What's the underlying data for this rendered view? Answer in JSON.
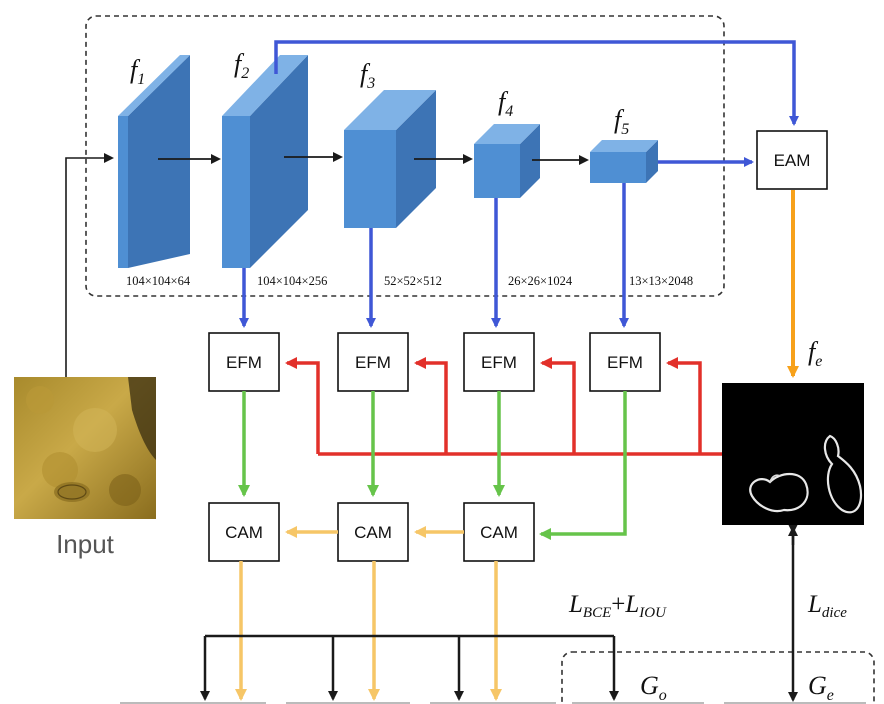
{
  "colors": {
    "blue_arrow": "#3f57d6",
    "red_arrow": "#e2302a",
    "green_arrow": "#66c44a",
    "yellow_arrow": "#f6c667",
    "orange_arrow": "#f7a11a",
    "black_arrow": "#1a1a1a",
    "cube_front": "#4f8fd3",
    "cube_side": "#3d74b5",
    "cube_top": "#7fb2e6"
  },
  "features": [
    {
      "symbol": "f",
      "sub": "1",
      "dims": "104×104×64"
    },
    {
      "symbol": "f",
      "sub": "2",
      "dims": "104×104×256"
    },
    {
      "symbol": "f",
      "sub": "3",
      "dims": "52×52×512"
    },
    {
      "symbol": "f",
      "sub": "4",
      "dims": "26×26×1024"
    },
    {
      "symbol": "f",
      "sub": "5",
      "dims": "13×13×2048"
    }
  ],
  "modules": {
    "eam": "EAM",
    "efm": "EFM",
    "cam": "CAM"
  },
  "edge_feature": {
    "symbol": "f",
    "sub": "e"
  },
  "input_label": "Input",
  "loss_bce_iou": {
    "l1": "L",
    "s1": "BCE",
    "plus": "+",
    "l2": "L",
    "s2": "IOU"
  },
  "loss_dice": {
    "l": "L",
    "s": "dice"
  },
  "ground_truth_object": {
    "symbol": "G",
    "sub": "o"
  },
  "ground_truth_edge": {
    "symbol": "G",
    "sub": "e"
  }
}
